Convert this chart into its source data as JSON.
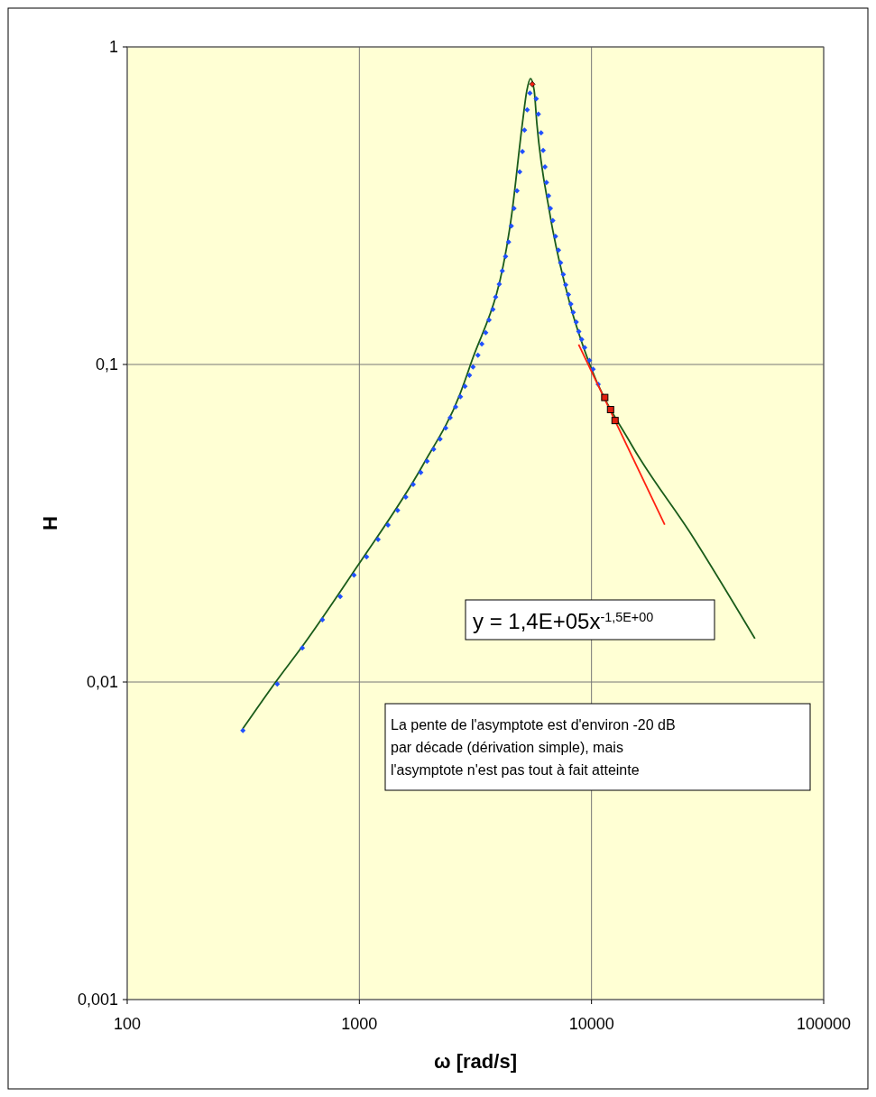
{
  "chart_data": {
    "type": "scatter",
    "xlabel": "ω  [rad/s]",
    "ylabel": "H",
    "log": "xy",
    "grid": true,
    "xlim": [
      100,
      100000
    ],
    "xticks": [
      100,
      1000,
      10000,
      100000
    ],
    "ylim": [
      0.001,
      1
    ],
    "yticks": [
      {
        "value": 0.001,
        "label": "0,001"
      },
      {
        "value": 0.01,
        "label": "0,01"
      },
      {
        "value": 0.1,
        "label": "0,1"
      },
      {
        "value": 1,
        "label": "1"
      }
    ],
    "series": [
      {
        "type": "line",
        "color": "#1a5c1a",
        "marker": "none",
        "line_style": "solid",
        "x": [
          314.5,
          434,
          579,
          986,
          1871,
          2718,
          3017,
          4538,
          5039,
          5270,
          5460,
          5660,
          5814,
          6610,
          8075,
          9795,
          14885,
          27030,
          50550
        ],
        "values": [
          0.00712,
          0.00995,
          0.0132,
          0.0233,
          0.048,
          0.081,
          0.1003,
          0.299,
          0.575,
          0.731,
          0.795,
          0.731,
          0.575,
          0.299,
          0.155,
          0.1005,
          0.0558,
          0.029,
          0.0137
        ]
      },
      {
        "color": "#2050ff",
        "marker": "diamond",
        "x": [
          315,
          443,
          568,
          693,
          827,
          948,
          1074,
          1204,
          1328,
          1462,
          1585,
          1706,
          1838,
          1957,
          2090,
          2226,
          2354,
          2462,
          2598,
          2725,
          2850,
          2980,
          3088,
          3241,
          3369,
          3501,
          3619,
          3761,
          3864,
          4005,
          4127,
          4262,
          4394,
          4514,
          4636,
          4775,
          4905,
          5039,
          5143,
          5283,
          5427,
          5778,
          5903,
          6063,
          6190,
          6302,
          6399,
          6531,
          6650,
          6813,
          6998,
          7206,
          7357,
          7558,
          7742,
          7953,
          8147,
          8338,
          8595,
          8813,
          9070,
          9343,
          9795,
          10153,
          10686
        ],
        "values": [
          0.00703,
          0.00985,
          0.0128,
          0.0157,
          0.0186,
          0.0217,
          0.0248,
          0.0281,
          0.0312,
          0.0347,
          0.0382,
          0.0419,
          0.0457,
          0.0496,
          0.0541,
          0.0582,
          0.0631,
          0.068,
          0.0735,
          0.0792,
          0.0853,
          0.0925,
          0.0982,
          0.107,
          0.116,
          0.126,
          0.138,
          0.149,
          0.163,
          0.179,
          0.197,
          0.219,
          0.243,
          0.273,
          0.31,
          0.352,
          0.404,
          0.468,
          0.547,
          0.634,
          0.715,
          0.687,
          0.614,
          0.536,
          0.472,
          0.419,
          0.374,
          0.34,
          0.31,
          0.284,
          0.253,
          0.229,
          0.209,
          0.192,
          0.178,
          0.166,
          0.155,
          0.146,
          0.136,
          0.127,
          0.12,
          0.113,
          0.103,
          0.0966,
          0.0866
        ]
      },
      {
        "type": "line",
        "color": "#ff2010",
        "marker": "none",
        "line_style": "solid",
        "x": [
          8800,
          20670
        ],
        "values": [
          0.1155,
          0.0313
        ]
      },
      {
        "color": "#e02010",
        "marker": "square",
        "x": [
          11404,
          12079,
          12629
        ],
        "values": [
          0.0787,
          0.0721,
          0.0666
        ]
      },
      {
        "color": "#ff2010",
        "marker": "diamond",
        "x": [
          5559
        ],
        "values": [
          0.763
        ]
      }
    ],
    "annotations": [
      "y = 1,4E+05x$^{-1,5E+00}$",
      "La pente de l'asymptote est d'environ -20 dB par décade (dérivation simple), mais l'asymptote n'est pas tout à fait atteinte"
    ]
  }
}
